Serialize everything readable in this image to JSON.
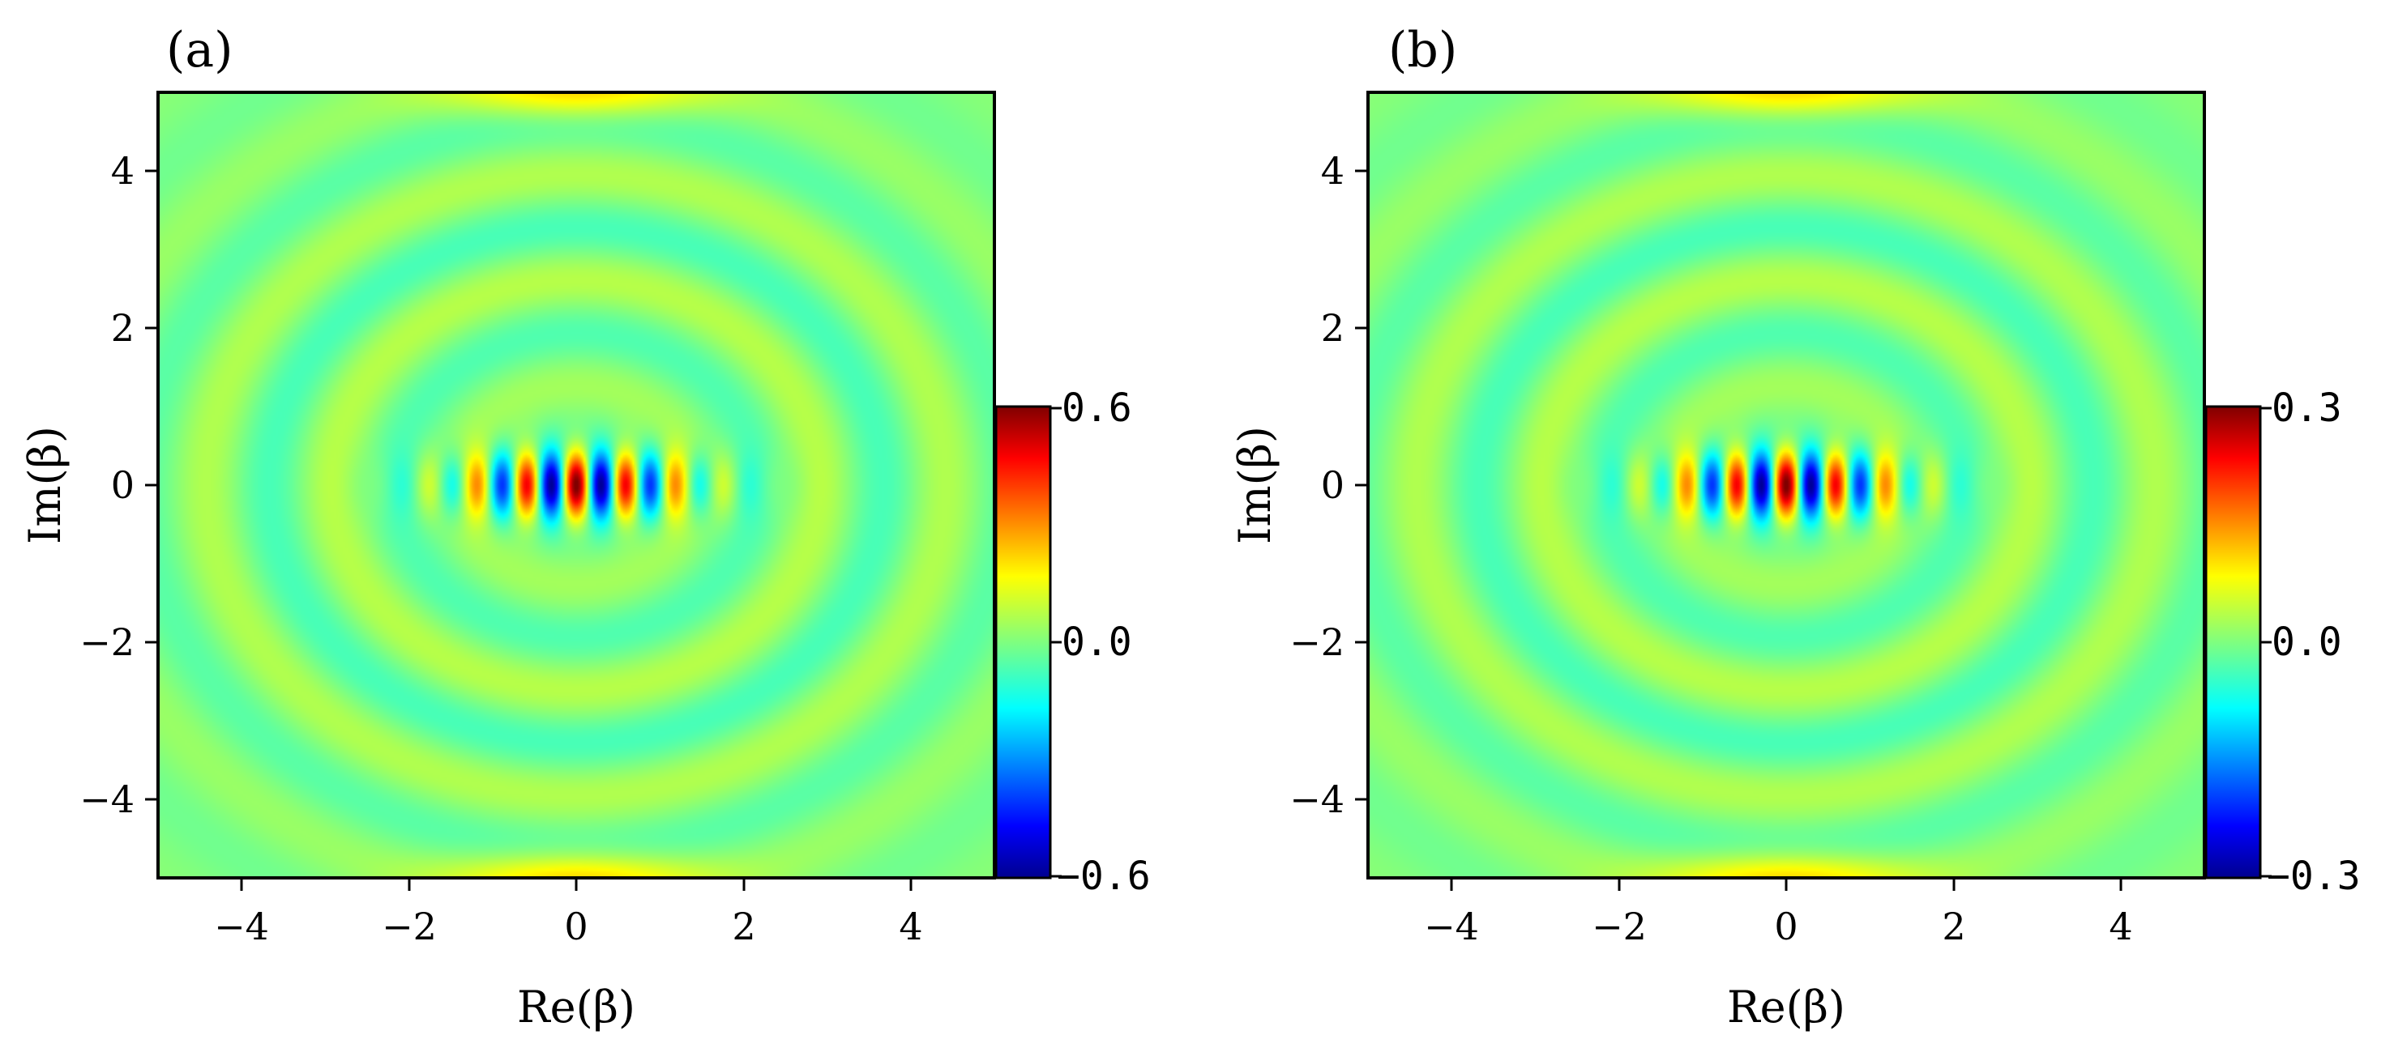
{
  "chart_data": [
    {
      "type": "heatmap",
      "panel_label": "(a)",
      "xlabel": "Re(β)",
      "ylabel": "Im(β)",
      "xlim": [
        -5,
        5
      ],
      "ylim": [
        -5,
        5
      ],
      "xticks": [
        "−4",
        "−2",
        "0",
        "2",
        "4"
      ],
      "yticks": [
        "4",
        "2",
        "0",
        "−2",
        "−4"
      ],
      "colorbar": {
        "colormap": "jet",
        "range": [
          -0.6,
          0.6
        ],
        "tick_labels": [
          "0.6",
          "0.0",
          "−0.6"
        ]
      },
      "peak_amplitude": 0.6
    },
    {
      "type": "heatmap",
      "panel_label": "(b)",
      "xlabel": "Re(β)",
      "ylabel": "Im(β)",
      "xlim": [
        -5,
        5
      ],
      "ylim": [
        -5,
        5
      ],
      "xticks": [
        "−4",
        "−2",
        "0",
        "2",
        "4"
      ],
      "yticks": [
        "4",
        "2",
        "0",
        "−2",
        "−4"
      ],
      "colorbar": {
        "colormap": "jet",
        "range": [
          -0.3,
          0.3
        ],
        "tick_labels": [
          "0.3",
          "0.0",
          "−0.3"
        ]
      },
      "peak_amplitude": 0.3
    }
  ]
}
